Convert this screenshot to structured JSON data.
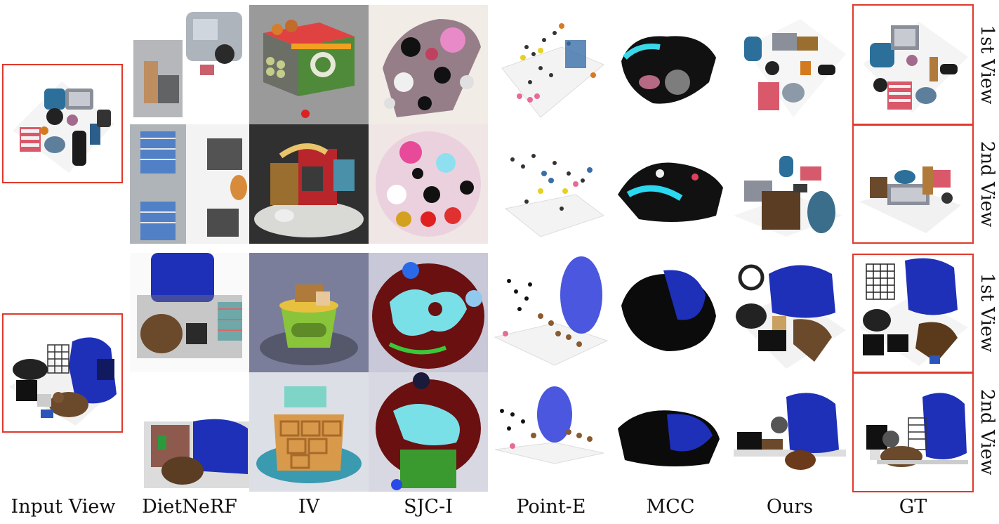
{
  "columns": {
    "input": "Input View",
    "dietnerf": "DietNeRF",
    "iv": "IV",
    "sjc": "SJC-I",
    "pointe": "Point-E",
    "mcc": "MCC",
    "ours": "Ours",
    "gt": "GT"
  },
  "rows": [
    {
      "label": "1st View"
    },
    {
      "label": "2nd View"
    },
    {
      "label": "1st View"
    },
    {
      "label": "2nd View"
    }
  ],
  "colors": {
    "frame": "#e0392b",
    "backpack": "#1e2fb8",
    "iv_bg_top": "#9a9a9a",
    "iv_bg_dark": "#303030",
    "iv_bg_slate": "#7a7e9a"
  }
}
